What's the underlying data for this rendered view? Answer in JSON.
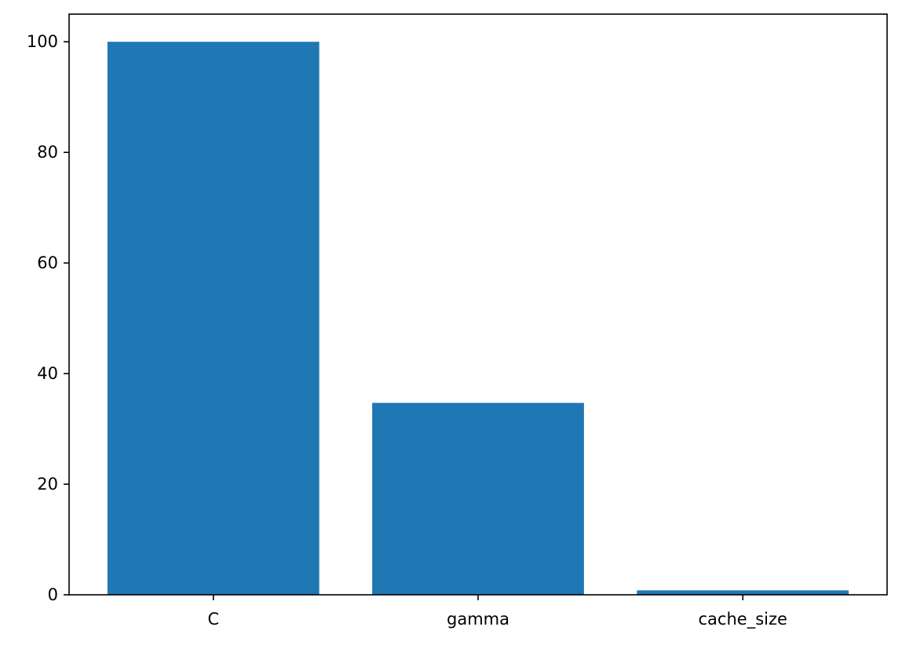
{
  "chart_data": {
    "type": "bar",
    "categories": [
      "C",
      "gamma",
      "cache_size"
    ],
    "values": [
      100,
      34.7,
      0.8
    ],
    "title": "",
    "xlabel": "",
    "ylabel": "",
    "ylim": [
      0,
      105
    ],
    "yticks": [
      0,
      20,
      40,
      60,
      80,
      100
    ],
    "ytick_labels": [
      "0",
      "20",
      "40",
      "60",
      "80",
      "100"
    ],
    "grid": false,
    "legend": "none",
    "colors": {
      "bar": "#1f77b4",
      "axis": "#000000",
      "background": "#ffffff"
    }
  }
}
